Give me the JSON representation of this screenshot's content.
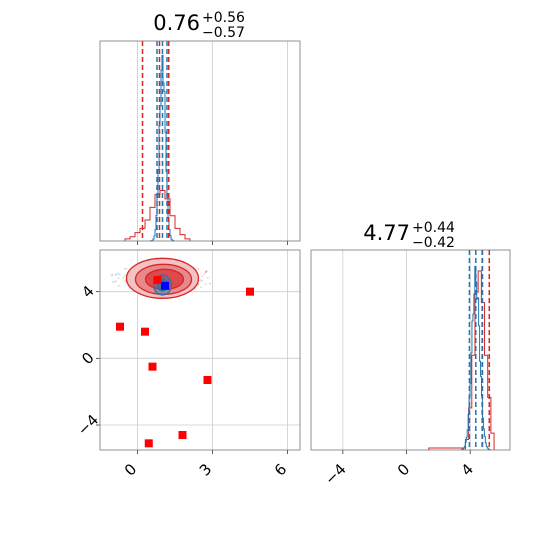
{
  "chart_data": {
    "type": "corner",
    "colors": {
      "blue": "#1f77b4",
      "red": "#d62728",
      "square_red": "#ff0000",
      "square_blue": "#0000ff"
    },
    "titles": [
      {
        "median": "0.76",
        "plus": "+0.56",
        "minus": "−0.57"
      },
      {
        "median": "4.77",
        "plus": "+0.44",
        "minus": "−0.42"
      }
    ],
    "x_ticks": [
      {
        "value": -4,
        "label": "−4"
      },
      {
        "value": 0,
        "label": "0"
      },
      {
        "value": 4,
        "label": "4"
      }
    ],
    "y_ticks": [
      {
        "value": 4,
        "label": "4"
      },
      {
        "value": 0,
        "label": "0"
      },
      {
        "value": -4,
        "label": "−4"
      }
    ],
    "x_ticks_param0": [
      {
        "value": 0,
        "label": "0"
      },
      {
        "value": 3,
        "label": "3"
      },
      {
        "value": 6,
        "label": "6"
      }
    ],
    "panels": {
      "hist_top": {
        "xlim": [
          -1.5,
          6.5
        ],
        "grid_x": [
          0,
          3,
          6
        ],
        "red_lines": [
          0.2,
          1.25
        ],
        "red_dashed_center": 0.76,
        "blue_lines": [
          0.78,
          1.18
        ],
        "blue_center": 1.0,
        "red_hist": {
          "bins": [
            -0.5,
            -0.3,
            -0.1,
            0.1,
            0.3,
            0.5,
            0.7,
            0.9,
            1.1,
            1.3,
            1.5,
            1.7,
            1.9,
            2.1
          ],
          "heights": [
            0.01,
            0.02,
            0.04,
            0.06,
            0.1,
            0.16,
            0.22,
            0.24,
            0.2,
            0.12,
            0.06,
            0.03,
            0.01
          ]
        },
        "blue_peak": 1.0
      },
      "hist_right": {
        "xlim": [
          -6,
          6.5
        ],
        "grid_x": [
          -4,
          0,
          4
        ],
        "red_lines": [
          4.35,
          5.2
        ],
        "red_dashed_center": 4.77,
        "blue_lines": [
          3.95,
          4.75
        ],
        "blue_center": 4.35,
        "red_hist": {
          "bins": [
            3.7,
            3.9,
            4.1,
            4.3,
            4.5,
            4.7,
            4.9,
            5.1,
            5.3,
            5.5
          ],
          "heights": [
            0.05,
            0.2,
            0.45,
            0.75,
            0.85,
            0.7,
            0.45,
            0.25,
            0.08
          ]
        },
        "blue_peak": 4.35
      },
      "scatter": {
        "xlim": [
          -1.5,
          6.5
        ],
        "ylim": [
          -5.5,
          6.5
        ],
        "grid_x": [
          0,
          3,
          6
        ],
        "grid_y": [
          -4,
          0,
          4
        ],
        "red_squares": [
          {
            "x": 4.5,
            "y": 4.0
          },
          {
            "x": -0.7,
            "y": 1.9
          },
          {
            "x": 0.3,
            "y": 1.6
          },
          {
            "x": 0.6,
            "y": -0.5
          },
          {
            "x": 2.8,
            "y": -1.3
          },
          {
            "x": 1.8,
            "y": -4.6
          },
          {
            "x": 0.45,
            "y": -5.1
          },
          {
            "x": 0.8,
            "y": 4.7
          }
        ],
        "blue_square": {
          "x": 1.1,
          "y": 4.35
        },
        "red_contour_center": {
          "x": 1.0,
          "y": 4.8
        },
        "blue_contour_center": {
          "x": 1.0,
          "y": 4.4
        }
      }
    }
  }
}
